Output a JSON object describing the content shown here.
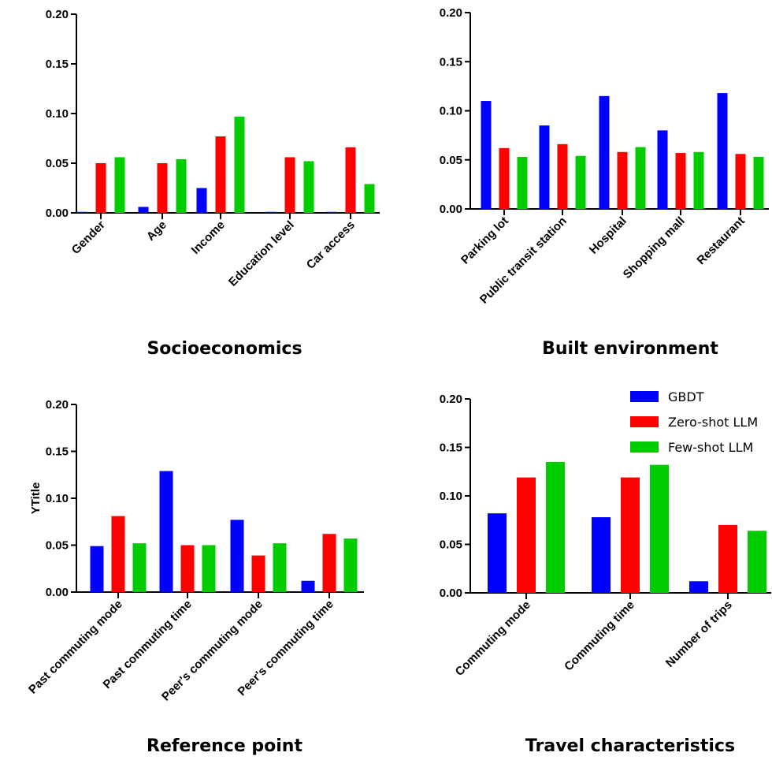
{
  "colors": {
    "GBDT": "#0000ff",
    "Zero-shot LLM": "#ff0000",
    "Few-shot LLM": "#00cc00"
  },
  "legend": [
    {
      "name": "GBDT",
      "color": "#0000ff"
    },
    {
      "name": "Zero-shot LLM",
      "color": "#ff0000"
    },
    {
      "name": "Few-shot LLM",
      "color": "#00cc00"
    }
  ],
  "chart_data": [
    {
      "type": "bar",
      "title": "Socioeconomics",
      "ylabel": "",
      "ylim": [
        0,
        0.2
      ],
      "yticks": [
        "0.00",
        "0.05",
        "0.10",
        "0.15",
        "0.20"
      ],
      "categories": [
        "Gender",
        "Age",
        "Income",
        "Education level",
        "Car access"
      ],
      "series": [
        {
          "name": "GBDT",
          "values": [
            0.001,
            0.006,
            0.025,
            0.001,
            0.001
          ]
        },
        {
          "name": "Zero-shot LLM",
          "values": [
            0.05,
            0.05,
            0.077,
            0.056,
            0.066
          ]
        },
        {
          "name": "Few-shot LLM",
          "values": [
            0.056,
            0.054,
            0.097,
            0.052,
            0.029
          ]
        }
      ]
    },
    {
      "type": "bar",
      "title": "Built environment",
      "ylabel": "",
      "ylim": [
        0,
        0.2
      ],
      "yticks": [
        "0.00",
        "0.05",
        "0.10",
        "0.15",
        "0.20"
      ],
      "categories": [
        "Parking lot",
        "Public transit station",
        "Hospital",
        "Shopping mall",
        "Restaurant"
      ],
      "series": [
        {
          "name": "GBDT",
          "values": [
            0.11,
            0.085,
            0.115,
            0.08,
            0.118
          ]
        },
        {
          "name": "Zero-shot LLM",
          "values": [
            0.062,
            0.066,
            0.058,
            0.057,
            0.056
          ]
        },
        {
          "name": "Few-shot LLM",
          "values": [
            0.053,
            0.054,
            0.063,
            0.058,
            0.053
          ]
        }
      ]
    },
    {
      "type": "bar",
      "title": "Reference point",
      "ylabel": "YTitle",
      "ylim": [
        0,
        0.2
      ],
      "yticks": [
        "0.00",
        "0.05",
        "0.10",
        "0.15",
        "0.20"
      ],
      "categories": [
        "Past commuting mode",
        "Past commuting time",
        "Peer's commuting mode",
        "Peer's commuting time"
      ],
      "series": [
        {
          "name": "GBDT",
          "values": [
            0.049,
            0.129,
            0.077,
            0.012
          ]
        },
        {
          "name": "Zero-shot LLM",
          "values": [
            0.081,
            0.05,
            0.039,
            0.062
          ]
        },
        {
          "name": "Few-shot LLM",
          "values": [
            0.052,
            0.05,
            0.052,
            0.057
          ]
        }
      ]
    },
    {
      "type": "bar",
      "title": "Travel characteristics",
      "ylabel": "",
      "ylim": [
        0,
        0.2
      ],
      "yticks": [
        "0.00",
        "0.05",
        "0.10",
        "0.15",
        "0.20"
      ],
      "categories": [
        "Commuting mode",
        "Commuting time",
        "Number of trips"
      ],
      "series": [
        {
          "name": "GBDT",
          "values": [
            0.082,
            0.078,
            0.012
          ]
        },
        {
          "name": "Zero-shot LLM",
          "values": [
            0.119,
            0.119,
            0.07
          ]
        },
        {
          "name": "Few-shot LLM",
          "values": [
            0.135,
            0.132,
            0.064
          ]
        }
      ]
    }
  ]
}
